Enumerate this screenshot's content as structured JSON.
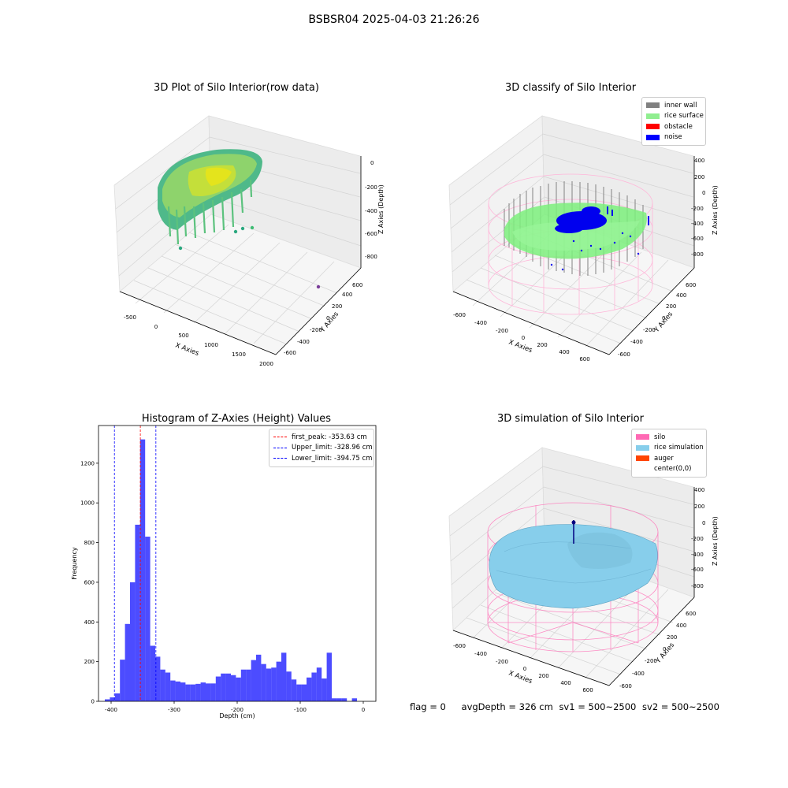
{
  "figure": {
    "title": "BSBSR04 2025-04-03 21:26:26"
  },
  "panels": {
    "raw": {
      "title": "3D Plot of Silo Interior(row data)",
      "xlabel": "X Axies",
      "ylabel": "Y Axies",
      "zlabel": "Z Axies (Depth)",
      "xticks": [
        "-500",
        "0",
        "500",
        "1000",
        "1500",
        "2000"
      ],
      "yticks": [
        "-600",
        "-400",
        "-200",
        "0",
        "200",
        "400",
        "600"
      ],
      "zticks": [
        "0",
        "-200",
        "-400",
        "-600",
        "-800"
      ]
    },
    "classify": {
      "title": "3D classify of Silo Interior",
      "xlabel": "X Axies",
      "ylabel": "Y Axies",
      "zlabel": "Z Axies (Depth)",
      "xticks": [
        "-600",
        "-400",
        "-200",
        "0",
        "200",
        "400",
        "600"
      ],
      "yticks": [
        "-600",
        "-400",
        "-200",
        "0",
        "200",
        "400",
        "600"
      ],
      "zticks": [
        "400",
        "200",
        "0",
        "-200",
        "-400",
        "-600",
        "-800"
      ],
      "legend": [
        {
          "label": "inner wall",
          "color": "#808080"
        },
        {
          "label": "rice surface",
          "color": "#90ee90"
        },
        {
          "label": "obstacle",
          "color": "#ff0000"
        },
        {
          "label": "noise",
          "color": "#0000ff"
        }
      ]
    },
    "simulation": {
      "title": "3D simulation of Silo Interior",
      "xlabel": "X Axies",
      "ylabel": "Y Axies",
      "zlabel": "Z Axies (Depth)",
      "xticks": [
        "-600",
        "-400",
        "-200",
        "0",
        "200",
        "400",
        "600"
      ],
      "yticks": [
        "-600",
        "-400",
        "-200",
        "0",
        "200",
        "400",
        "600"
      ],
      "zticks": [
        "400",
        "200",
        "0",
        "-200",
        "-400",
        "-600",
        "-800"
      ],
      "legend": [
        {
          "label": "silo",
          "color": "#ff69b4"
        },
        {
          "label": "rice simulation",
          "color": "#87ceeb"
        },
        {
          "label": "auger",
          "color": "#ff4500"
        },
        {
          "label": "center(0,0)",
          "color": ""
        }
      ]
    }
  },
  "footer": {
    "flag": "flag = 0",
    "avg": "avgDepth = 326 cm",
    "sv1": "sv1 = 500~2500",
    "sv2": "sv2 = 500~2500"
  },
  "chart_data": {
    "type": "bar",
    "title": "Histogram of Z-Axies (Height) Values",
    "xlabel": "Depth (cm)",
    "ylabel": "Frequency",
    "xlim": [
      -420,
      20
    ],
    "ylim": [
      0,
      1390
    ],
    "xticks": [
      -400,
      -300,
      -200,
      -100,
      0
    ],
    "yticks": [
      0,
      200,
      400,
      600,
      800,
      1000,
      1200
    ],
    "bin_width": 8,
    "bin_start": -410,
    "values": [
      10,
      20,
      40,
      210,
      390,
      600,
      890,
      1320,
      830,
      280,
      225,
      160,
      145,
      105,
      100,
      95,
      85,
      85,
      88,
      95,
      90,
      90,
      125,
      140,
      140,
      132,
      120,
      160,
      160,
      208,
      235,
      188,
      165,
      170,
      200,
      245,
      150,
      110,
      85,
      85,
      120,
      145,
      170,
      115,
      245,
      15,
      15,
      15,
      0,
      15
    ],
    "color": "#0000ff",
    "lines": [
      {
        "label": "first_peak: -353.63 cm",
        "x": -353.63,
        "color": "#ff0000"
      },
      {
        "label": "Upper_limit: -328.96 cm",
        "x": -328.96,
        "color": "#0000ff"
      },
      {
        "label": "Lower_limit: -394.75 cm",
        "x": -394.75,
        "color": "#0000ff"
      }
    ],
    "legend_position": "upper right"
  }
}
